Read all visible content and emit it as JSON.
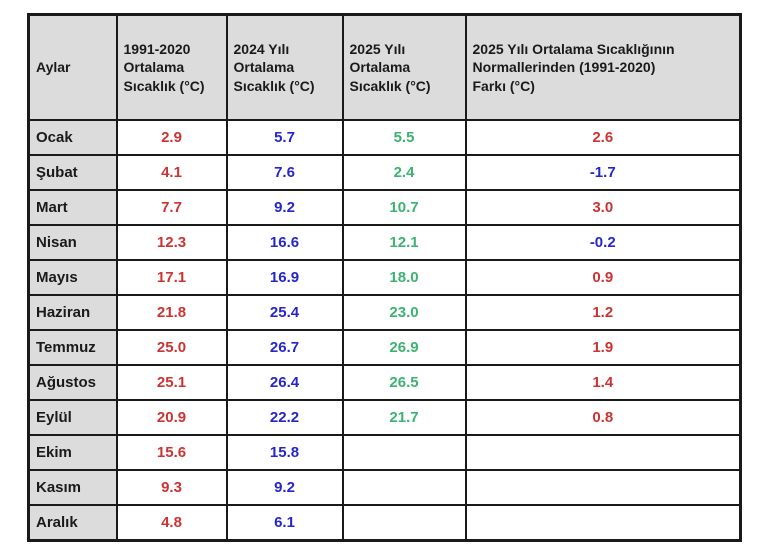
{
  "colors": {
    "red": "#CC3333",
    "blue": "#2626C9",
    "green": "#3CB371",
    "header_bg": "#DCDCDC",
    "border": "#1A1A1A",
    "text": "#1A1A1A"
  },
  "table": {
    "headers": [
      {
        "text": "Aylar"
      },
      {
        "text": "1991-2020\nOrtalama\nSıcaklık (°C)"
      },
      {
        "text": "2024 Yılı\nOrtalama\nSıcaklık (°C)"
      },
      {
        "text": "2025 Yılı\nOrtalama\nSıcaklık (°C)"
      },
      {
        "text": "2025 Yılı Ortalama Sıcaklığının\nNormallerinden (1991-2020)\nFarkı (°C)"
      }
    ],
    "rows": [
      {
        "month": "Ocak",
        "cells": [
          {
            "text": "2.9",
            "color": "red"
          },
          {
            "text": "5.7",
            "color": "blue"
          },
          {
            "text": "5.5",
            "color": "green"
          },
          {
            "text": "2.6",
            "color": "red"
          }
        ]
      },
      {
        "month": "Şubat",
        "cells": [
          {
            "text": "4.1",
            "color": "red"
          },
          {
            "text": "7.6",
            "color": "blue"
          },
          {
            "text": "2.4",
            "color": "green"
          },
          {
            "text": "-1.7",
            "color": "blue"
          }
        ]
      },
      {
        "month": "Mart",
        "cells": [
          {
            "text": "7.7",
            "color": "red"
          },
          {
            "text": "9.2",
            "color": "blue"
          },
          {
            "text": "10.7",
            "color": "green"
          },
          {
            "text": "3.0",
            "color": "red"
          }
        ]
      },
      {
        "month": "Nisan",
        "cells": [
          {
            "text": "12.3",
            "color": "red"
          },
          {
            "text": "16.6",
            "color": "blue"
          },
          {
            "text": "12.1",
            "color": "green"
          },
          {
            "text": "-0.2",
            "color": "blue"
          }
        ]
      },
      {
        "month": "Mayıs",
        "cells": [
          {
            "text": "17.1",
            "color": "red"
          },
          {
            "text": "16.9",
            "color": "blue"
          },
          {
            "text": "18.0",
            "color": "green"
          },
          {
            "text": "0.9",
            "color": "red"
          }
        ]
      },
      {
        "month": "Haziran",
        "cells": [
          {
            "text": "21.8",
            "color": "red"
          },
          {
            "text": "25.4",
            "color": "blue"
          },
          {
            "text": "23.0",
            "color": "green"
          },
          {
            "text": "1.2",
            "color": "red"
          }
        ]
      },
      {
        "month": "Temmuz",
        "cells": [
          {
            "text": "25.0",
            "color": "red"
          },
          {
            "text": "26.7",
            "color": "blue"
          },
          {
            "text": "26.9",
            "color": "green"
          },
          {
            "text": "1.9",
            "color": "red"
          }
        ]
      },
      {
        "month": "Ağustos",
        "cells": [
          {
            "text": "25.1",
            "color": "red"
          },
          {
            "text": "26.4",
            "color": "blue"
          },
          {
            "text": "26.5",
            "color": "green"
          },
          {
            "text": "1.4",
            "color": "red"
          }
        ]
      },
      {
        "month": "Eylül",
        "cells": [
          {
            "text": "20.9",
            "color": "red"
          },
          {
            "text": "22.2",
            "color": "blue"
          },
          {
            "text": "21.7",
            "color": "green"
          },
          {
            "text": "0.8",
            "color": "red"
          }
        ]
      },
      {
        "month": "Ekim",
        "cells": [
          {
            "text": "15.6",
            "color": "red"
          },
          {
            "text": "15.8",
            "color": "blue"
          },
          {
            "text": "",
            "color": null
          },
          {
            "text": "",
            "color": null
          }
        ]
      },
      {
        "month": "Kasım",
        "cells": [
          {
            "text": "9.3",
            "color": "red"
          },
          {
            "text": "9.2",
            "color": "blue"
          },
          {
            "text": "",
            "color": null
          },
          {
            "text": "",
            "color": null
          }
        ]
      },
      {
        "month": "Aralık",
        "cells": [
          {
            "text": "4.8",
            "color": "red"
          },
          {
            "text": "6.1",
            "color": "blue"
          },
          {
            "text": "",
            "color": null
          },
          {
            "text": "",
            "color": null
          }
        ]
      }
    ]
  },
  "chart_data": {
    "type": "table",
    "columns": [
      "Aylar",
      "1991-2020 Ortalama Sıcaklık (°C)",
      "2024 Yılı Ortalama Sıcaklık (°C)",
      "2025 Yılı Ortalama Sıcaklık (°C)",
      "2025 Yılı Ortalama Sıcaklığının Normallerinden (1991-2020) Farkı (°C)"
    ],
    "rows": [
      [
        "Ocak",
        2.9,
        5.7,
        5.5,
        2.6
      ],
      [
        "Şubat",
        4.1,
        7.6,
        2.4,
        -1.7
      ],
      [
        "Mart",
        7.7,
        9.2,
        10.7,
        3.0
      ],
      [
        "Nisan",
        12.3,
        16.6,
        12.1,
        -0.2
      ],
      [
        "Mayıs",
        17.1,
        16.9,
        18.0,
        0.9
      ],
      [
        "Haziran",
        21.8,
        25.4,
        23.0,
        1.2
      ],
      [
        "Temmuz",
        25.0,
        26.7,
        26.9,
        1.9
      ],
      [
        "Ağustos",
        25.1,
        26.4,
        26.5,
        1.4
      ],
      [
        "Eylül",
        20.9,
        22.2,
        21.7,
        0.8
      ],
      [
        "Ekim",
        15.6,
        15.8,
        null,
        null
      ],
      [
        "Kasım",
        9.3,
        9.2,
        null,
        null
      ],
      [
        "Aralık",
        4.8,
        6.1,
        null,
        null
      ]
    ],
    "color_coding": {
      "col_1991_2020": "red",
      "col_2024": "blue",
      "col_2025": "green",
      "fark_positive": "red",
      "fark_negative": "blue"
    },
    "title": "",
    "legend_position": "none",
    "grid": true
  }
}
